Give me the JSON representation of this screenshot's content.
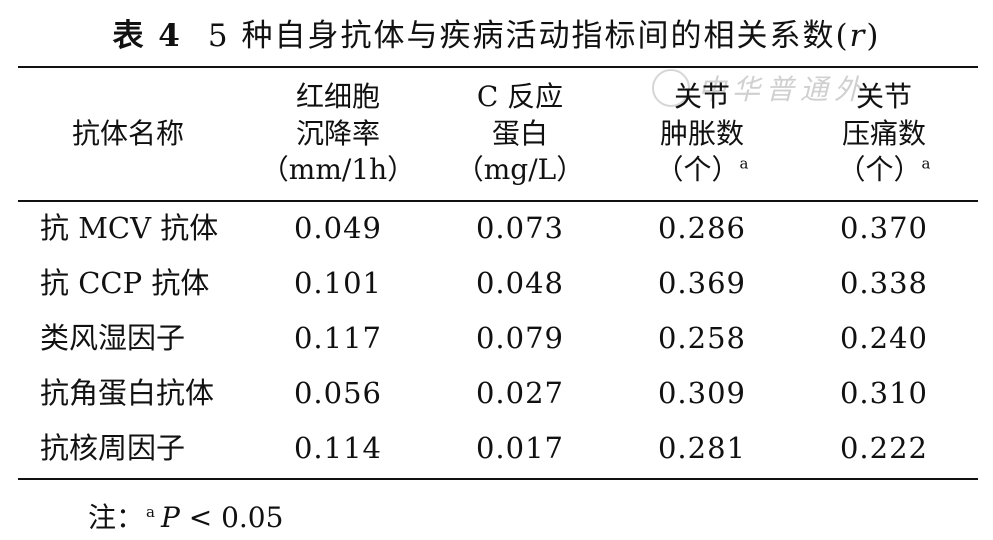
{
  "table": {
    "label": "表 4",
    "title_main": "5 种自身抗体与疾病活动指标间的相关系数(",
    "title_var": "r",
    "title_close": ")",
    "headers": [
      {
        "lines": [
          "抗体名称"
        ],
        "sup": ""
      },
      {
        "lines": [
          "红细胞",
          "沉降率",
          "（mm/1h）"
        ],
        "sup": ""
      },
      {
        "lines": [
          "C 反应",
          "蛋白",
          "（mg/L）"
        ],
        "sup": ""
      },
      {
        "lines": [
          "关节",
          "肿胀数",
          "（个）"
        ],
        "sup": "a"
      },
      {
        "lines": [
          "关节",
          "压痛数",
          "（个）"
        ],
        "sup": "a"
      }
    ],
    "rows": [
      {
        "name": "抗 MCV 抗体",
        "values": [
          "0.049",
          "0.073",
          "0.286",
          "0.370"
        ]
      },
      {
        "name": "抗 CCP 抗体",
        "values": [
          "0.101",
          "0.048",
          "0.369",
          "0.338"
        ]
      },
      {
        "name": "类风湿因子",
        "values": [
          "0.117",
          "0.079",
          "0.258",
          "0.240"
        ]
      },
      {
        "name": "抗角蛋白抗体",
        "values": [
          "0.056",
          "0.027",
          "0.309",
          "0.310"
        ]
      },
      {
        "name": "抗核周因子",
        "values": [
          "0.114",
          "0.017",
          "0.281",
          "0.222"
        ]
      }
    ]
  },
  "note": {
    "prefix": "注：",
    "sup": "a",
    "p": "P",
    "rest": " < 0.05"
  },
  "watermark": {
    "text": "中华普通外",
    "color": "#c8c8c8"
  }
}
